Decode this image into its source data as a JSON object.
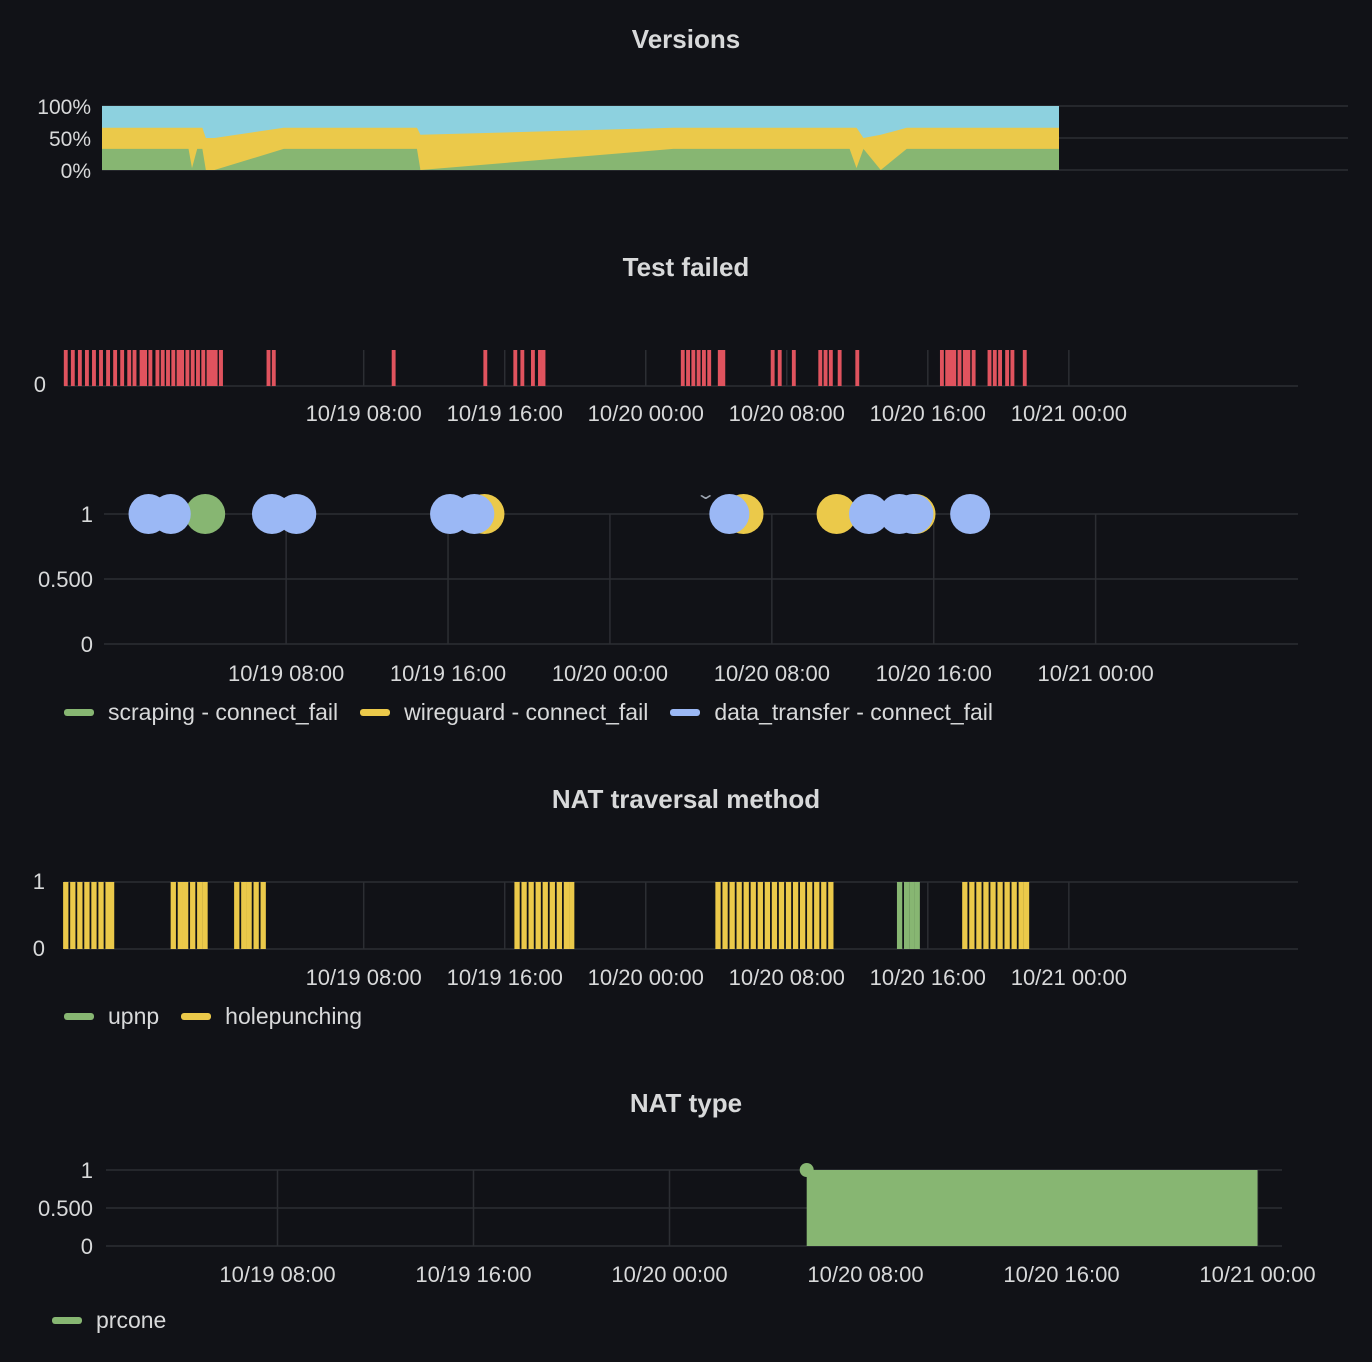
{
  "colors": {
    "bg": "#111217",
    "grid": "#2c2e33",
    "text": "#d8d9da",
    "red": "#e0535e",
    "green": "#87b672",
    "yellow": "#ebc94a",
    "blue": "#9bb8f5",
    "cyan": "#8dd1df"
  },
  "chart_data": [
    {
      "id": "versions",
      "type": "area",
      "title": "Versions",
      "stacking": "percent",
      "y_ticks": [
        "100%",
        "50%",
        "0%"
      ],
      "ylim": [
        0,
        100
      ],
      "xlim": [
        -9,
        63
      ],
      "data_end": 46.3,
      "series": [
        {
          "name": "",
          "color": "#87b672",
          "points": [
            [
              -9,
              33
            ],
            [
              -4,
              33
            ],
            [
              -3.8,
              3
            ],
            [
              -3.5,
              33
            ],
            [
              -3.2,
              33
            ],
            [
              -3,
              0
            ],
            [
              -2.5,
              0
            ],
            [
              1.5,
              33
            ],
            [
              9.2,
              33
            ],
            [
              9.4,
              0
            ],
            [
              24,
              33
            ],
            [
              34.2,
              33
            ],
            [
              34.6,
              3
            ],
            [
              35,
              33
            ],
            [
              36,
              0
            ],
            [
              37.5,
              33
            ],
            [
              46.3,
              33
            ]
          ]
        },
        {
          "name": "",
          "color": "#ebc94a",
          "points": [
            [
              -9,
              66
            ],
            [
              -4,
              66
            ],
            [
              -3.8,
              66
            ],
            [
              -3.5,
              66
            ],
            [
              -3.2,
              66
            ],
            [
              -3,
              50
            ],
            [
              -2.5,
              50
            ],
            [
              1.5,
              66
            ],
            [
              9.2,
              66
            ],
            [
              9.4,
              55
            ],
            [
              24,
              66
            ],
            [
              34.2,
              66
            ],
            [
              34.6,
              66
            ],
            [
              35,
              50
            ],
            [
              36,
              55
            ],
            [
              37.5,
              66
            ],
            [
              46.3,
              66
            ]
          ]
        },
        {
          "name": "",
          "color": "#8dd1df",
          "points": [
            [
              -9,
              100
            ],
            [
              46.3,
              100
            ]
          ]
        }
      ]
    },
    {
      "id": "test-failed",
      "type": "bar",
      "title": "Test failed",
      "y_ticks": [
        "0"
      ],
      "xlim": [
        -9,
        61
      ],
      "x_ticks": [
        "10/19 08:00",
        "10/19 16:00",
        "10/20 00:00",
        "10/20 08:00",
        "10/20 16:00",
        "10/21 00:00"
      ],
      "x_tick_hours": [
        8,
        16,
        24,
        32,
        40,
        48
      ],
      "failure_hours": [
        -8.9,
        -8.5,
        -8.1,
        -7.7,
        -7.3,
        -6.9,
        -6.5,
        -6.1,
        -5.7,
        -5.3,
        -5.0,
        -4.6,
        -4.4,
        -4.1,
        -3.7,
        -3.4,
        -3.1,
        -2.8,
        -2.5,
        -2.3,
        -2.0,
        -1.7,
        -1.4,
        -1.1,
        -0.8,
        -0.6,
        -0.4,
        -0.1,
        -0.4,
        -0.1,
        2.6,
        2.9,
        9.7,
        14.9,
        16.6,
        17.0,
        17.6,
        18.0,
        18.2,
        26.1,
        26.4,
        26.7,
        27.0,
        27.3,
        27.6,
        28.2,
        28.4,
        31.2,
        31.6,
        32.4,
        33.9,
        34.2,
        34.5,
        35.0,
        36.0,
        40.8,
        41.1,
        41.3,
        41.5,
        41.8,
        42.1,
        42.3,
        42.6,
        43.5,
        43.8,
        44.1,
        44.5,
        44.8,
        45.5
      ],
      "bar_width_hours": 0.22
    },
    {
      "id": "failure-kinds",
      "type": "scatter",
      "title": "",
      "y_ticks": [
        "1",
        "0.500",
        "0"
      ],
      "ylim": [
        0,
        1
      ],
      "xlim": [
        -1.0,
        58.0
      ],
      "x_ticks": [
        "10/19 08:00",
        "10/19 16:00",
        "10/20 00:00",
        "10/20 08:00",
        "10/20 16:00",
        "10/21 00:00"
      ],
      "x_tick_hours": [
        8,
        16,
        24,
        32,
        40,
        48
      ],
      "series": [
        {
          "name": "scraping - connect_fail",
          "color": "#87b672",
          "x": [
            4.0
          ],
          "y": [
            1
          ]
        },
        {
          "name": "wireguard - connect_fail",
          "color": "#ebc94a",
          "x": [
            17.8,
            30.6,
            35.2,
            39.1
          ],
          "y": [
            1,
            1,
            1,
            1
          ]
        },
        {
          "name": "data_transfer - connect_fail",
          "color": "#9bb8f5",
          "x": [
            1.2,
            2.3,
            7.3,
            8.5,
            16.1,
            17.3,
            29.9,
            36.8,
            38.3,
            39.0,
            41.8
          ],
          "y": [
            1,
            1,
            1,
            1,
            1,
            1,
            1,
            1,
            1,
            1,
            1
          ]
        }
      ]
    },
    {
      "id": "nat-method",
      "type": "bar",
      "title": "NAT traversal method",
      "y_ticks": [
        "1",
        "0"
      ],
      "xlim": [
        -9,
        61
      ],
      "x_ticks": [
        "10/19 08:00",
        "10/19 16:00",
        "10/20 00:00",
        "10/20 08:00",
        "10/20 16:00",
        "10/21 00:00"
      ],
      "x_tick_hours": [
        8,
        16,
        24,
        32,
        40,
        48
      ],
      "bar_width_hours": 0.3,
      "series": [
        {
          "name": "upnp",
          "color": "#87b672",
          "x": [
            38.4,
            38.8,
            39.1,
            39.4
          ]
        },
        {
          "name": "holepunching",
          "color": "#ebc94a",
          "x": [
            -8.9,
            -8.5,
            -8.1,
            -7.7,
            -7.3,
            -6.9,
            -6.5,
            -6.3,
            -2.8,
            -2.4,
            -2.1,
            -1.7,
            -1.3,
            -1.0,
            0.8,
            1.2,
            1.5,
            1.9,
            2.3,
            16.7,
            17.1,
            17.5,
            17.9,
            18.3,
            18.7,
            19.1,
            19.5,
            19.8,
            28.1,
            28.5,
            28.9,
            29.3,
            29.7,
            30.1,
            30.5,
            30.9,
            31.3,
            31.7,
            32.1,
            32.5,
            32.9,
            33.3,
            33.7,
            34.1,
            34.5,
            42.1,
            42.5,
            42.9,
            43.3,
            43.7,
            44.1,
            44.5,
            44.9,
            45.3,
            45.6
          ]
        }
      ]
    },
    {
      "id": "nat-type",
      "type": "area",
      "title": "NAT type",
      "y_ticks": [
        "1",
        "0.500",
        "0"
      ],
      "ylim": [
        0,
        1
      ],
      "xlim": [
        1.0,
        49.0
      ],
      "x_ticks": [
        "10/19 08:00",
        "10/19 16:00",
        "10/20 00:00",
        "10/20 08:00",
        "10/20 16:00",
        "10/21 00:00"
      ],
      "x_tick_hours": [
        8,
        16,
        24,
        32,
        40,
        48
      ],
      "series": [
        {
          "name": "prcone",
          "color": "#87b672",
          "x_start": 29.6,
          "x_end": 48.0,
          "value": 1
        }
      ]
    }
  ]
}
